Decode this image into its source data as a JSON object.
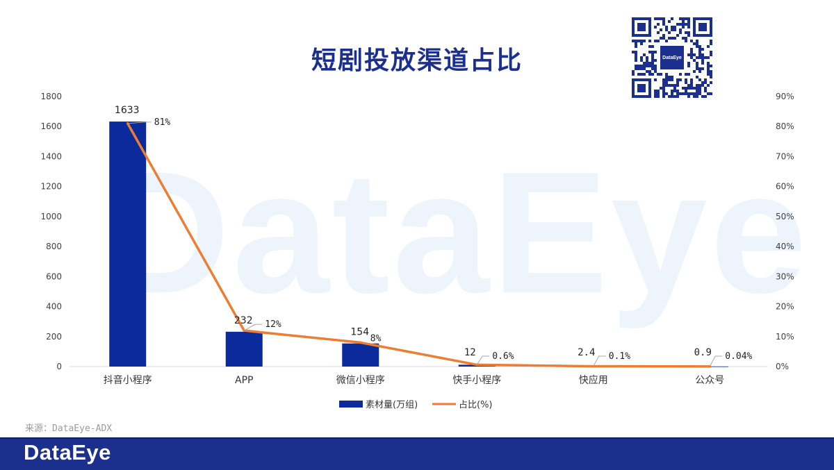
{
  "page": {
    "title": "短剧投放渠道占比",
    "source": "来源：DataEye-ADX",
    "footer_logo": "DataEye",
    "watermark": "DataEye",
    "qr_label": "DataEye"
  },
  "chart_data": {
    "type": "bar+line",
    "title": "短剧投放渠道占比",
    "categories": [
      "抖音小程序",
      "APP",
      "微信小程序",
      "快手小程序",
      "快应用",
      "公众号"
    ],
    "series": [
      {
        "name": "素材量(万组)",
        "type": "bar",
        "axis": "left",
        "color": "#0b2a9c",
        "values": [
          1633,
          232,
          154,
          12,
          2.4,
          0.9
        ],
        "labels": [
          "1633",
          "232",
          "154",
          "12",
          "2.4",
          "0.9"
        ]
      },
      {
        "name": "占比(%)",
        "type": "line",
        "axis": "right",
        "color": "#ed7d31",
        "values": [
          81,
          12,
          8,
          0.6,
          0.1,
          0.04
        ],
        "labels": [
          "81%",
          "12%",
          "8%",
          "0.6%",
          "0.1%",
          "0.04%"
        ]
      }
    ],
    "y_left": {
      "min": 0,
      "max": 1800,
      "ticks": [
        "0",
        "200",
        "400",
        "600",
        "800",
        "1000",
        "1200",
        "1400",
        "1600",
        "1800"
      ]
    },
    "y_right": {
      "min": 0,
      "max": 90,
      "ticks": [
        "0%",
        "10%",
        "20%",
        "30%",
        "40%",
        "50%",
        "60%",
        "70%",
        "80%",
        "90%"
      ]
    },
    "legend": "bottom-center"
  }
}
